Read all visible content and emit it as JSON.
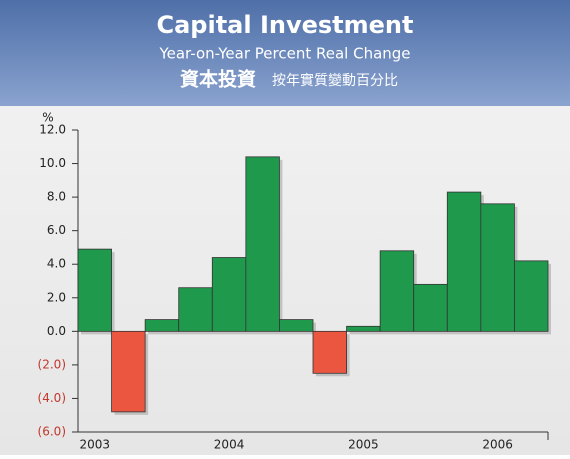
{
  "chart_data": {
    "type": "bar",
    "title": "Capital Investment",
    "subtitle": "Year-on-Year Percent Real Change",
    "title_zh": "資本投資",
    "subtitle_zh": "按年實質變動百分比",
    "y_label": "%",
    "categories": [
      "2003",
      null,
      null,
      null,
      "2004",
      null,
      null,
      null,
      "2005",
      null,
      null,
      null,
      "2006",
      null
    ],
    "values": [
      4.9,
      -4.8,
      0.7,
      2.6,
      4.4,
      10.4,
      0.7,
      -2.5,
      0.3,
      4.8,
      2.8,
      8.3,
      7.6,
      4.2
    ],
    "positive_color": "#1f9a4c",
    "negative_color": "#ea5640",
    "ylim": [
      -6,
      12
    ],
    "yticks": [
      {
        "value": 12,
        "label": "12.0"
      },
      {
        "value": 10,
        "label": "10.0"
      },
      {
        "value": 8,
        "label": "8.0"
      },
      {
        "value": 6,
        "label": "6.0"
      },
      {
        "value": 4,
        "label": "4.0"
      },
      {
        "value": 2,
        "label": "2.0"
      },
      {
        "value": 0,
        "label": "0.0"
      },
      {
        "value": -2,
        "label": "(2.0)"
      },
      {
        "value": -4,
        "label": "(4.0)"
      },
      {
        "value": -6,
        "label": "(6.0)"
      }
    ],
    "grid": false
  }
}
